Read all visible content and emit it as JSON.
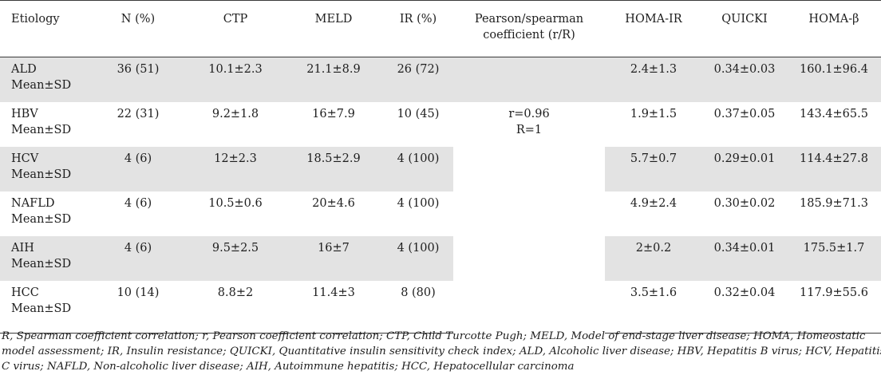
{
  "headers": [
    "Etiology",
    "N (%)",
    "CTP",
    "MELD",
    "IR (%)",
    "Pearson/spearman coefficient (r/R)",
    "HOMA-IR",
    "QUICKI",
    "HOMA-β"
  ],
  "sub_label": "Mean±SD",
  "rows": [
    {
      "etiology": "ALD",
      "n": "36 (51)",
      "ctp": "10.1±2.3",
      "meld": "21.1±8.9",
      "ir": "26 (72)",
      "homa_ir": "2.4±1.3",
      "quicki": "0.34±0.03",
      "homa_b": "160.1±96.4"
    },
    {
      "etiology": "HBV",
      "n": "22 (31)",
      "ctp": "9.2±1.8",
      "meld": "16±7.9",
      "ir": "10 (45)",
      "homa_ir": "1.9±1.5",
      "quicki": "0.37±0.05",
      "homa_b": "143.4±65.5"
    },
    {
      "etiology": "HCV",
      "n": "4 (6)",
      "ctp": "12±2.3",
      "meld": "18.5±2.9",
      "ir": "4 (100)",
      "homa_ir": "5.7±0.7",
      "quicki": "0.29±0.01",
      "homa_b": "114.4±27.8"
    },
    {
      "etiology": "NAFLD",
      "n": "4 (6)",
      "ctp": "10.5±0.6",
      "meld": "20±4.6",
      "ir": "4 (100)",
      "homa_ir": "4.9±2.4",
      "quicki": "0.30±0.02",
      "homa_b": "185.9±71.3"
    },
    {
      "etiology": "AIH",
      "n": "4 (6)",
      "ctp": "9.5±2.5",
      "meld": "16±7",
      "ir": "4 (100)",
      "homa_ir": "2±0.2",
      "quicki": "0.34±0.01",
      "homa_b": "175.5±1.7"
    },
    {
      "etiology": "HCC",
      "n": "10 (14)",
      "ctp": "8.8±2",
      "meld": "11.4±3",
      "ir": "8 (80)",
      "homa_ir": "3.5±1.6",
      "quicki": "0.32±0.04",
      "homa_b": "117.9±55.6"
    }
  ],
  "coefficient": {
    "r": "r=0.96",
    "R": "R=1"
  },
  "footnote_lines": [
    "R, Spearman coefficient correlation; r, Pearson coefficient correlation; CTP, Child Turcotte Pugh; MELD, Model of end-stage liver disease; HOMA, Homeostatic",
    "model assessment; IR, Insulin resistance; QUICKI, Quantitative insulin sensitivity check index; ALD, Alcoholic liver disease; HBV, Hepatitis B virus; HCV, Hepatitis",
    "C virus; NAFLD, Non-alcoholic liver disease; AIH, Autoimmune hepatitis; HCC, Hepatocellular carcinoma"
  ]
}
